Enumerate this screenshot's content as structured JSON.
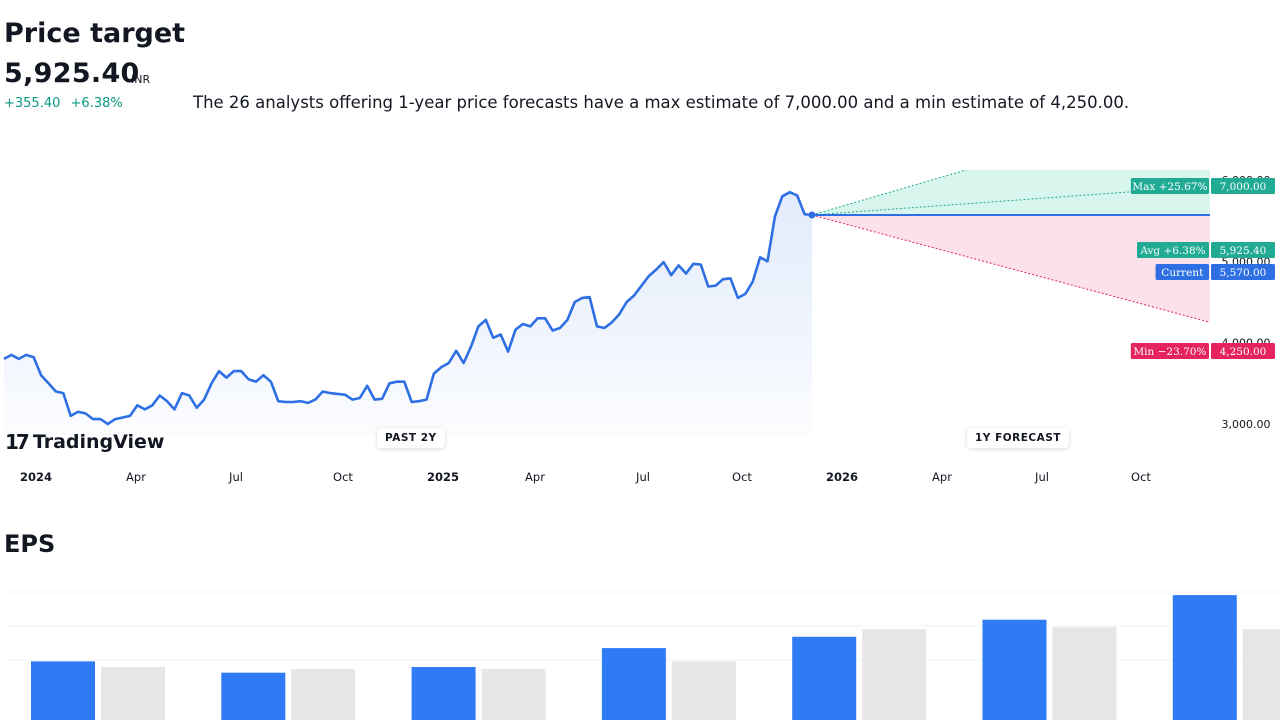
{
  "header": {
    "title": "Price target",
    "value": "5,925.40",
    "currency": "INR",
    "change_abs": "+355.40",
    "change_pct": "+6.38%",
    "description": "The 26 analysts offering 1-year price forecasts have a max estimate of 7,000.00 and a min estimate of 4,250.00."
  },
  "logo": {
    "text": "TradingView"
  },
  "periods": {
    "past": "PAST 2Y",
    "forecast": "1Y FORECAST"
  },
  "colors": {
    "line": "#2f6fe4",
    "up": "#22ab94",
    "down": "#e5245f",
    "eps_actual": "#2f7bf5",
    "eps_estimate": "#e6e6e6"
  },
  "chart_data": [
    {
      "type": "line",
      "x_tick_labels": [
        "2024",
        "Apr",
        "Jul",
        "Oct",
        "2025",
        "Apr",
        "Jul",
        "Oct",
        "2026",
        "Apr",
        "Jul",
        "Oct"
      ],
      "y_tick_labels": [
        "3,000.00",
        "4,000.00",
        "5,000.00",
        "6,000.00"
      ],
      "ylim": [
        2800,
        7300
      ],
      "series": [
        {
          "values": [
            3800,
            3850,
            3800,
            3850,
            3820,
            3600,
            3500,
            3400,
            3380,
            3100,
            3150,
            3130,
            3060,
            3060,
            3000,
            3060,
            3080,
            3100,
            3230,
            3180,
            3230,
            3350,
            3280,
            3180,
            3380,
            3350,
            3200,
            3300,
            3500,
            3650,
            3570,
            3650,
            3650,
            3550,
            3520,
            3600,
            3520,
            3280,
            3270,
            3270,
            3280,
            3260,
            3300,
            3400,
            3380,
            3370,
            3360,
            3300,
            3320,
            3470,
            3300,
            3310,
            3500,
            3520,
            3520,
            3270,
            3280,
            3300,
            3620,
            3700,
            3750,
            3900,
            3750,
            3950,
            4200,
            4280,
            4060,
            4100,
            3890,
            4160,
            4230,
            4200,
            4300,
            4300,
            4150,
            4180,
            4280,
            4500,
            4550,
            4560,
            4200,
            4180,
            4250,
            4350,
            4500,
            4580,
            4700,
            4820,
            4900,
            4990,
            4830,
            4950,
            4850,
            4970,
            4960,
            4690,
            4700,
            4780,
            4790,
            4550,
            4600,
            4750,
            5050,
            5000,
            5550,
            5800,
            5850,
            5810,
            5580,
            5570
          ],
          "forecast_start": 5570
        }
      ],
      "forecast": {
        "max": {
          "label": "Max +25.67%",
          "value": "7,000.00",
          "v": 7000
        },
        "avg": {
          "label": "Avg +6.38%",
          "value": "5,925.40",
          "v": 5925.4
        },
        "current": {
          "label": "Current",
          "value": "5,570.00",
          "v": 5570
        },
        "min": {
          "label": "Min −23.70%",
          "value": "4,250.00",
          "v": 4250
        }
      }
    },
    {
      "type": "bar",
      "series": [
        {
          "values": [
            3.1,
            2.5,
            2.8,
            3.8,
            4.4,
            5.3,
            6.6
          ]
        },
        {
          "values": [
            2.8,
            2.7,
            2.7,
            3.1,
            4.8,
            4.9,
            4.8
          ]
        }
      ],
      "ylim": [
        0,
        7.4
      ]
    }
  ]
}
